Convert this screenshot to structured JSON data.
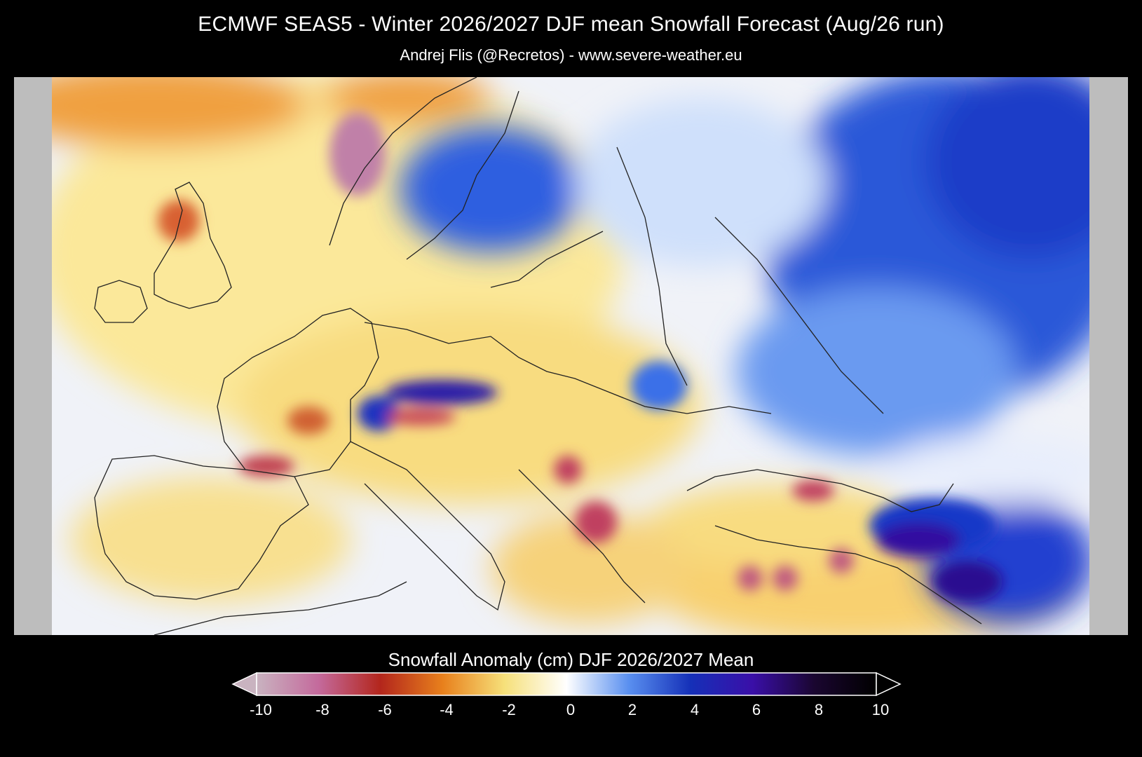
{
  "title": "ECMWF SEAS5 - Winter 2026/2027 DJF mean Snowfall Forecast (Aug/26 run)",
  "subtitle": "Andrej Flis (@Recretos) - www.severe-weather.eu",
  "legend": {
    "title": "Snowfall Anomaly (cm) DJF 2026/2027 Mean",
    "ticks": [
      "-10",
      "-8",
      "-6",
      "-4",
      "-2",
      "0",
      "2",
      "4",
      "6",
      "8",
      "10"
    ],
    "colors": {
      "-10": "#c9b3c0",
      "-8": "#c46a9c",
      "-6": "#b3261c",
      "-4": "#e8801c",
      "-2": "#f6e07a",
      "0": "#ffffff",
      "2": "#5a90f0",
      "4": "#1530b8",
      "6": "#3a0fa8",
      "8": "#1a0630",
      "10": "#000000"
    }
  },
  "map": {
    "region": "Europe",
    "variable": "snowfall anomaly",
    "units": "cm"
  }
}
